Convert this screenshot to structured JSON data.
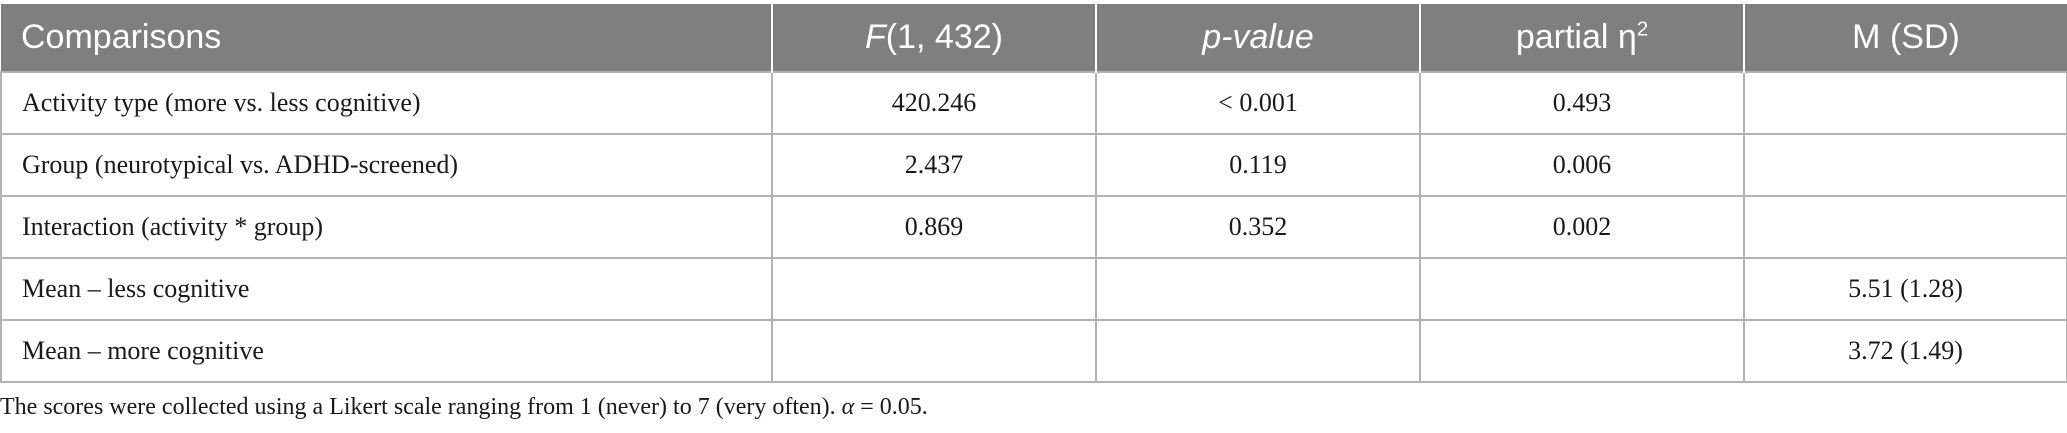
{
  "header": {
    "comparisons": "Comparisons",
    "f_italic": "F",
    "f_rest": "(1, 432)",
    "p_value": "p-value",
    "partial_eta": "partial η",
    "partial_eta_sup": "2",
    "m_sd": "M (SD)"
  },
  "rows": [
    {
      "label": "Activity type (more vs. less cognitive)",
      "f": "420.246",
      "p": "< 0.001",
      "eta": "0.493",
      "msd": ""
    },
    {
      "label": "Group (neurotypical vs. ADHD-screened)",
      "f": "2.437",
      "p": "0.119",
      "eta": "0.006",
      "msd": ""
    },
    {
      "label": "Interaction (activity * group)",
      "f": "0.869",
      "p": "0.352",
      "eta": "0.002",
      "msd": ""
    },
    {
      "label": "Mean – less cognitive",
      "f": "",
      "p": "",
      "eta": "",
      "msd": "5.51 (1.28)"
    },
    {
      "label": "Mean – more cognitive",
      "f": "",
      "p": "",
      "eta": "",
      "msd": "3.72 (1.49)"
    }
  ],
  "footnote": {
    "text": "The scores were collected using a Likert scale ranging from 1 (never) to 7 (very often). ",
    "alpha_symbol": "α",
    "alpha_value": " = 0.05."
  }
}
